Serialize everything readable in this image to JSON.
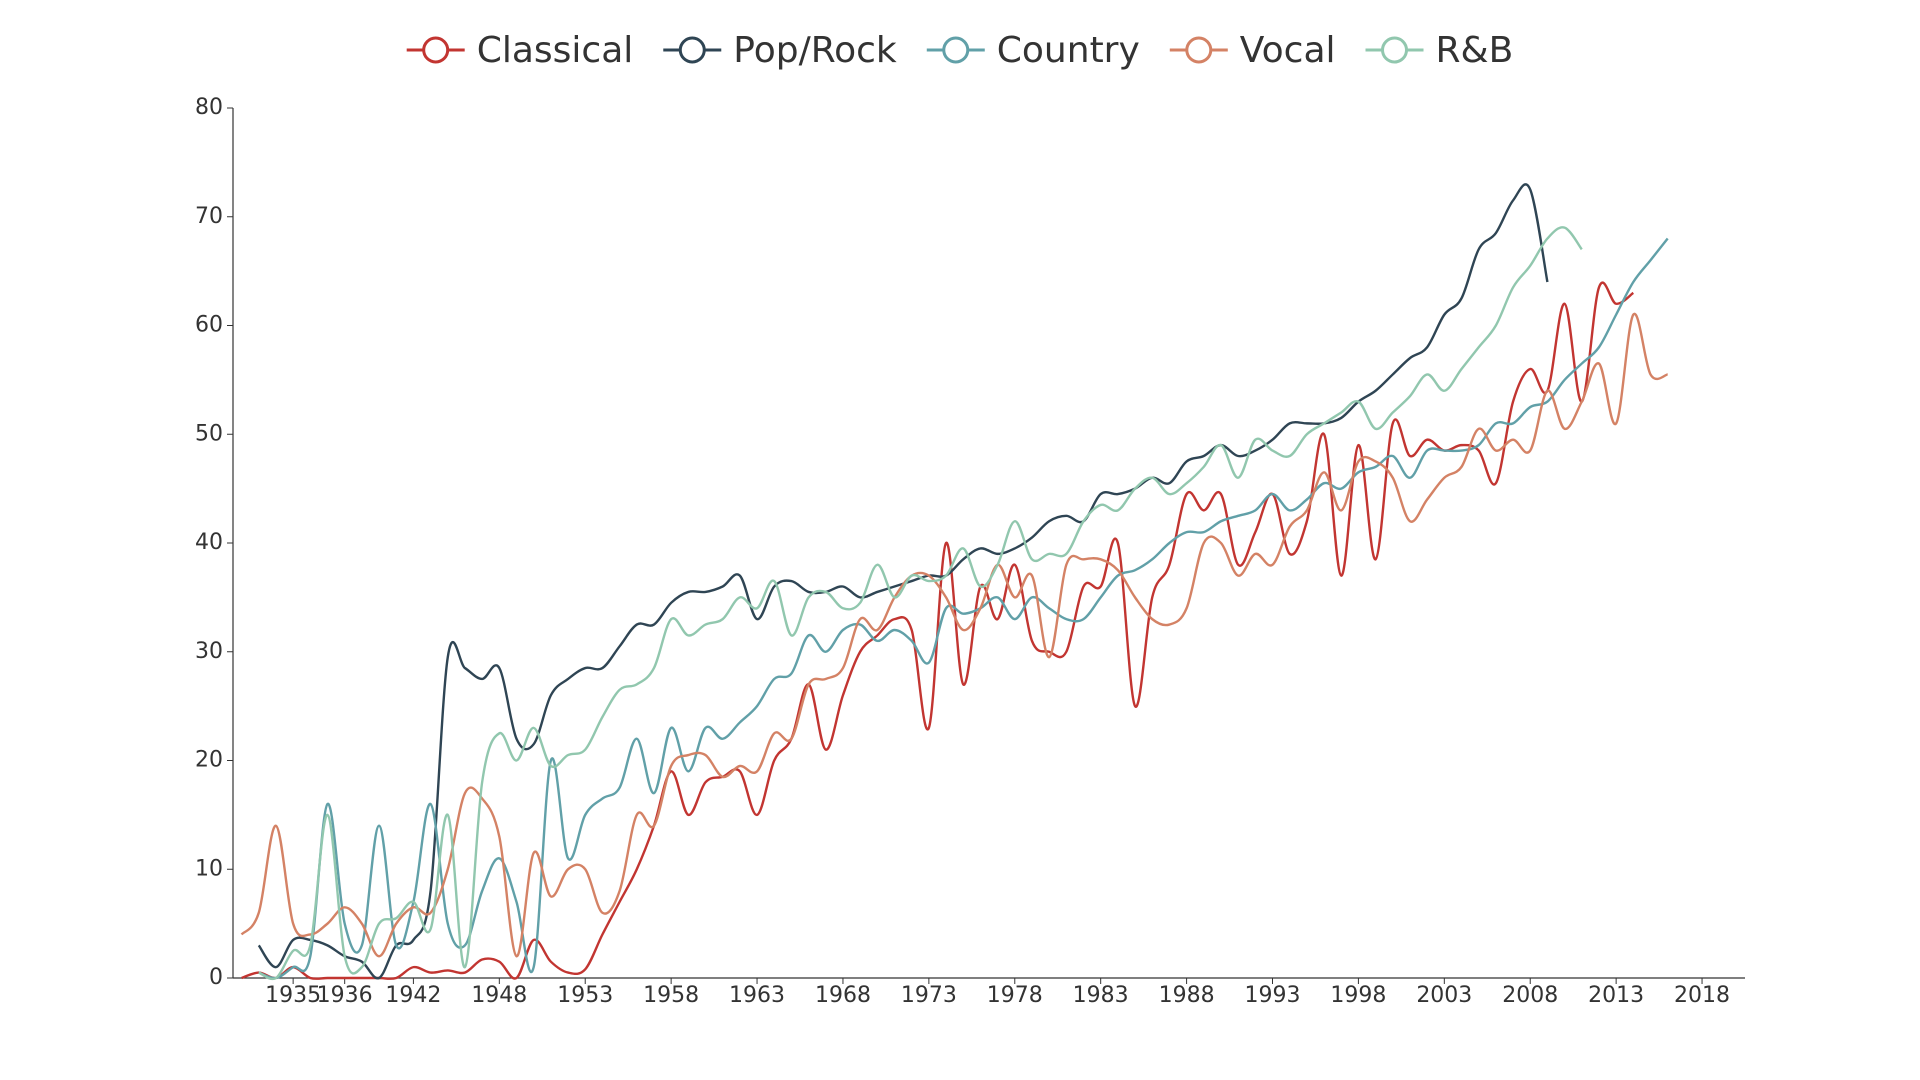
{
  "chart_data": {
    "type": "line",
    "categories": [
      null,
      null,
      null,
      "1935",
      null,
      null,
      "1936",
      null,
      null,
      null,
      "1942",
      null,
      null,
      null,
      null,
      "1948",
      null,
      null,
      null,
      null,
      "1953",
      null,
      null,
      null,
      null,
      "1958",
      null,
      null,
      null,
      null,
      "1963",
      null,
      null,
      null,
      null,
      "1968",
      null,
      null,
      null,
      null,
      "1973",
      null,
      null,
      null,
      null,
      "1978",
      null,
      null,
      null,
      null,
      "1983",
      null,
      null,
      null,
      null,
      "1988",
      null,
      null,
      null,
      null,
      "1993",
      null,
      null,
      null,
      null,
      "1998",
      null,
      null,
      null,
      null,
      "2003",
      null,
      null,
      null,
      null,
      "2008",
      null,
      null,
      null,
      null,
      "2013",
      null,
      null,
      null,
      null,
      "2018",
      null,
      null
    ],
    "ylim": [
      0,
      80
    ],
    "yticks": [
      0,
      10,
      20,
      30,
      40,
      50,
      60,
      70,
      80
    ],
    "grid": false,
    "legend": "top",
    "series": [
      {
        "name": "Classical",
        "color": "#c23531",
        "values": [
          0,
          0.5,
          0,
          1,
          0,
          0,
          0,
          0,
          0,
          0,
          1,
          0.5,
          0.7,
          0.5,
          1.7,
          1.5,
          0,
          3.5,
          1.5,
          0.5,
          0.8,
          4,
          7,
          10,
          14,
          19,
          15,
          18,
          18.5,
          19,
          15,
          20,
          22,
          27,
          21,
          26,
          30,
          31.5,
          33,
          32,
          23,
          40,
          27,
          36,
          33,
          38,
          31,
          30,
          30,
          36,
          36,
          40,
          25,
          35,
          38,
          44.5,
          43,
          44.5,
          38,
          41,
          44.5,
          39,
          42,
          50,
          37,
          49,
          38.5,
          51,
          48,
          49.5,
          48.5,
          49,
          48.5,
          45.5,
          53,
          56,
          54,
          62,
          53,
          63.5,
          62,
          63,
          null,
          null,
          null,
          null,
          null,
          null
        ]
      },
      {
        "name": "Pop/Rock",
        "color": "#2f4554",
        "values": [
          null,
          3,
          1,
          3.5,
          3.5,
          3,
          2,
          1.5,
          0,
          3,
          3.5,
          8,
          29.5,
          28.5,
          27.5,
          28.5,
          22,
          21.5,
          26,
          27.5,
          28.5,
          28.5,
          30.5,
          32.5,
          32.5,
          34.5,
          35.5,
          35.5,
          36,
          37,
          33,
          36,
          36.5,
          35.5,
          35.5,
          36,
          35,
          35.5,
          36,
          36.5,
          37,
          37,
          38.5,
          39.5,
          39,
          39.5,
          40.5,
          42,
          42.5,
          42,
          44.5,
          44.5,
          45,
          46,
          45.5,
          47.5,
          48,
          49,
          48,
          48.5,
          49.5,
          51,
          51,
          51,
          51.5,
          53,
          54,
          55.5,
          57,
          58,
          61,
          62.5,
          67,
          68.5,
          71.5,
          72.5,
          64,
          null,
          null,
          null,
          null,
          null,
          null,
          null,
          null,
          null,
          null,
          null
        ]
      },
      {
        "name": "Country",
        "color": "#61a0a8",
        "values": [
          null,
          0.5,
          0,
          1,
          2,
          16,
          5,
          3,
          14,
          3,
          7,
          16,
          5,
          3,
          8,
          11,
          7,
          1,
          20,
          11,
          15,
          16.5,
          17.5,
          22,
          17,
          23,
          19,
          23,
          22,
          23.5,
          25,
          27.5,
          28,
          31.5,
          30,
          32,
          32.5,
          31,
          32,
          31,
          29,
          34,
          33.5,
          34,
          35,
          33,
          35,
          34,
          33,
          33,
          35,
          37,
          37.5,
          38.5,
          40,
          41,
          41,
          42,
          42.5,
          43,
          44.5,
          43,
          44,
          45.5,
          45,
          46.5,
          47,
          48,
          46,
          48.5,
          48.5,
          48.5,
          49,
          51,
          51,
          52.5,
          53,
          55,
          56.5,
          58,
          61,
          64,
          66,
          68,
          null,
          null,
          null,
          null
        ]
      },
      {
        "name": "Vocal",
        "color": "#d48265",
        "values": [
          4,
          6,
          14,
          5,
          4,
          5,
          6.5,
          5,
          2,
          5,
          6.5,
          6,
          10,
          17,
          16.5,
          13,
          2,
          11.5,
          7.5,
          10,
          10,
          6,
          8,
          15,
          14,
          19.5,
          20.5,
          20.5,
          18.5,
          19.5,
          19,
          22.5,
          22,
          27,
          27.5,
          28.5,
          33,
          32,
          35,
          37,
          37,
          35,
          32,
          34,
          38,
          35,
          37,
          29.5,
          38,
          38.5,
          38.5,
          37.5,
          35,
          33,
          32.5,
          34,
          40,
          40,
          37,
          39,
          38,
          41.5,
          43,
          46.5,
          43,
          47.5,
          47.5,
          46,
          42,
          44,
          46,
          47,
          50.5,
          48.5,
          49.5,
          48.5,
          54,
          50.5,
          53,
          56.5,
          51,
          61,
          55.5,
          55.5,
          null,
          null,
          null,
          null
        ]
      },
      {
        "name": "R&B",
        "color": "#91c7ae",
        "values": [
          null,
          0.5,
          0,
          2.5,
          3,
          15,
          2,
          1,
          5,
          5.5,
          7,
          4.5,
          15,
          1,
          18,
          22.5,
          20,
          23,
          19.5,
          20.5,
          21,
          24,
          26.5,
          27,
          28.5,
          33,
          31.5,
          32.5,
          33,
          35,
          34,
          36.5,
          31.5,
          35,
          35.5,
          34,
          34.5,
          38,
          35,
          37,
          36.5,
          37,
          39.5,
          36,
          38,
          42,
          38.5,
          39,
          39,
          42,
          43.5,
          43,
          45,
          46,
          44.5,
          45.5,
          47,
          49,
          46,
          49.5,
          48.5,
          48,
          50,
          51,
          52,
          53,
          50.5,
          52,
          53.5,
          55.5,
          54,
          56,
          58,
          60,
          63.5,
          65.5,
          68,
          69,
          67,
          null,
          null,
          null,
          null,
          null,
          null,
          null,
          null,
          null
        ]
      }
    ]
  }
}
